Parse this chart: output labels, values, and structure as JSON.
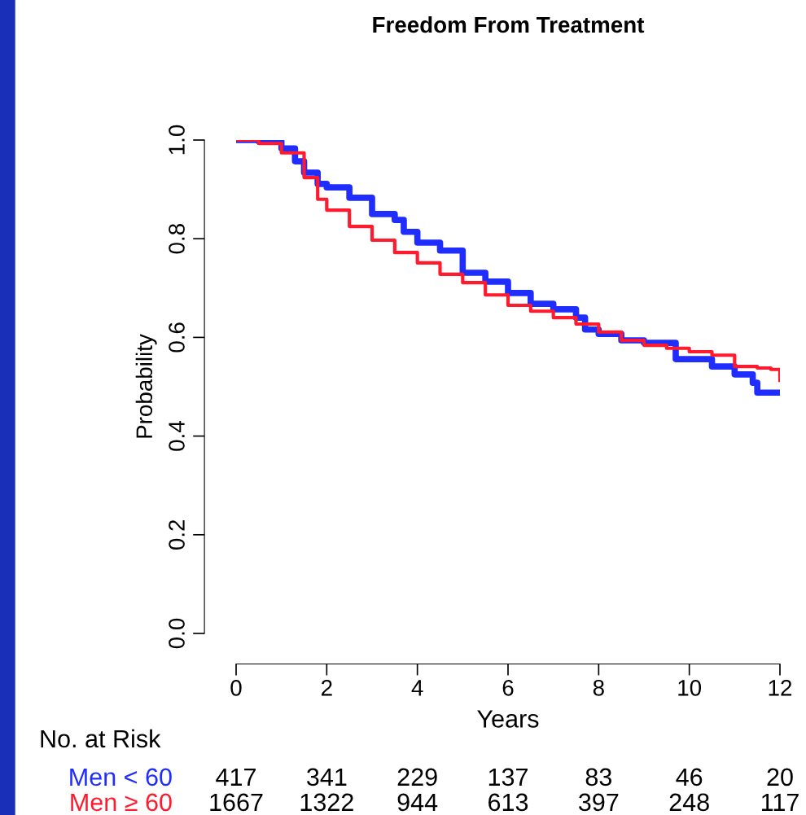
{
  "chart_data": {
    "type": "step",
    "title": "Freedom From Treatment",
    "xlabel": "Years",
    "ylabel": "Probability",
    "xlim": [
      0,
      12
    ],
    "ylim": [
      0,
      1
    ],
    "xticks": [
      0,
      2,
      4,
      6,
      8,
      10,
      12
    ],
    "yticks": [
      {
        "value": 0,
        "label": "0.0"
      },
      {
        "value": 0.2,
        "label": "0.2"
      },
      {
        "value": 0.4,
        "label": "0.4"
      },
      {
        "value": 0.6,
        "label": "0.6"
      },
      {
        "value": 0.8,
        "label": "0.8"
      },
      {
        "value": 1,
        "label": "1.0"
      }
    ],
    "grid": false,
    "legend": false,
    "series": [
      {
        "name": "Men < 60",
        "color": "#1f2dff",
        "x": [
          0,
          0.5,
          1,
          1.3,
          1.5,
          1.8,
          2,
          2.5,
          3,
          3.5,
          3.7,
          4,
          4.5,
          5,
          5.5,
          6,
          6.5,
          7,
          7.5,
          7.7,
          8,
          8.5,
          9,
          9.6,
          9.7,
          10.2,
          10.5,
          11,
          11.4,
          11.5,
          12
        ],
        "values": [
          1.0,
          0.997,
          0.983,
          0.957,
          0.934,
          0.911,
          0.904,
          0.883,
          0.85,
          0.838,
          0.814,
          0.792,
          0.776,
          0.731,
          0.713,
          0.69,
          0.668,
          0.657,
          0.64,
          0.616,
          0.607,
          0.594,
          0.589,
          0.589,
          0.556,
          0.556,
          0.541,
          0.525,
          0.508,
          0.488,
          0.488
        ]
      },
      {
        "name": "Men ≥ 60",
        "color": "#ff1a2e",
        "x": [
          0,
          0.5,
          1,
          1.5,
          1.8,
          2,
          2.5,
          3,
          3.5,
          4,
          4.5,
          5,
          5.5,
          6,
          6.5,
          7,
          7.5,
          8,
          8.5,
          9,
          9.5,
          10,
          10.5,
          11,
          11.5,
          11.8,
          12
        ],
        "values": [
          1.0,
          0.993,
          0.974,
          0.924,
          0.88,
          0.858,
          0.825,
          0.797,
          0.772,
          0.751,
          0.728,
          0.711,
          0.686,
          0.665,
          0.653,
          0.64,
          0.627,
          0.611,
          0.594,
          0.584,
          0.578,
          0.571,
          0.564,
          0.541,
          0.538,
          0.535,
          0.513
        ]
      }
    ],
    "annotations": [
      "No. at Risk",
      "417 341 229 137 83 46 20",
      "1667 1322 944 613 397 248 117"
    ]
  }
}
